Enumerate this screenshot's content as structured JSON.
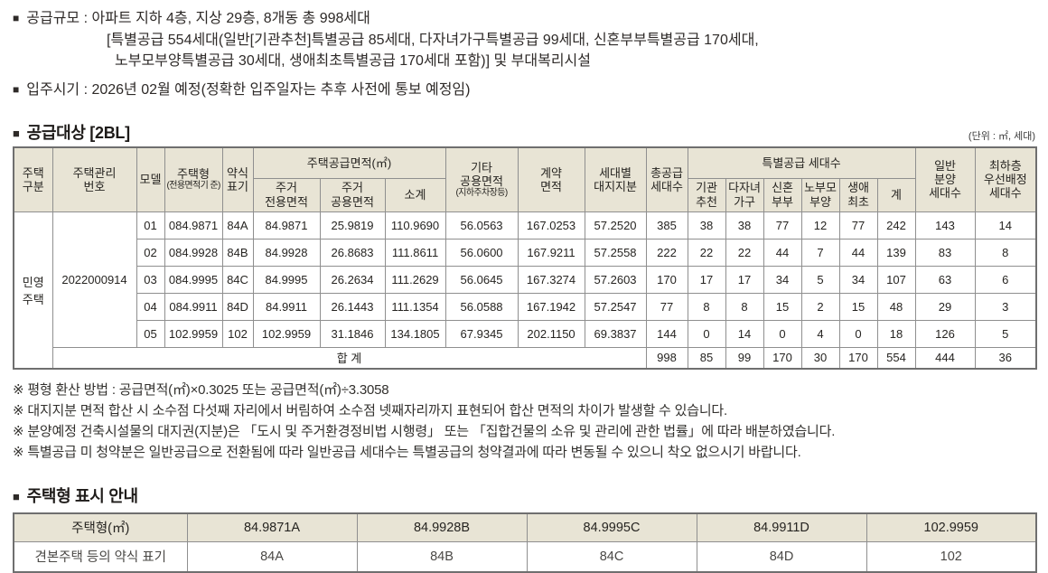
{
  "glyphs": {
    "bullet": "■"
  },
  "intro": {
    "supply_scale_line1": "공급규모 : 아파트 지하 4층, 지상 29층, 8개동 총 998세대",
    "supply_scale_line2": "[특별공급 554세대(일반[기관추천]특별공급 85세대, 다자녀가구특별공급 99세대, 신혼부부특별공급 170세대,",
    "supply_scale_line3": "노부모부양특별공급 30세대, 생애최초특별공급 170세대 포함)] 및 부대복리시설",
    "move_in": "입주시기 : 2026년 02월 예정(정확한 입주일자는 추후 사전에 통보 예정임)"
  },
  "supply_section": {
    "title": "공급대상 [2BL]",
    "unit_note": "(단위 : ㎡, 세대)",
    "headers": {
      "category": "주택\n구분",
      "mgmt_no": "주택관리\n번호",
      "model": "모델",
      "house_type_main": "주택형",
      "house_type_sub": "(전용면적기\n준)",
      "short_code": "약식\n표기",
      "supply_area_group": "주택공급면적(㎡)",
      "exclusive_area": "주거\n전용면적",
      "common_area": "주거\n공용면적",
      "subtotal": "소계",
      "other_common_main": "기타\n공용면적",
      "other_common_sub": "(지하주차장등)",
      "contract_area": "계약\n면적",
      "land_share": "세대별\n대지지분",
      "total_supply": "총공급\n세대수",
      "special_group": "특별공급 세대수",
      "agency": "기관\n추천",
      "multi_child": "다자녀\n가구",
      "newlywed": "신혼\n부부",
      "elderly_support": "노부모\n부양",
      "first_time": "생애\n최초",
      "special_sum": "계",
      "general_sale": "일반\n분양\n세대수",
      "ground_floor": "최하층\n우선배정\n세대수"
    },
    "group": {
      "category": "민영\n주택",
      "mgmt_no": "2022000914"
    },
    "rows": [
      [
        "01",
        "084.9871",
        "84A",
        "84.9871",
        "25.9819",
        "110.9690",
        "56.0563",
        "167.0253",
        "57.2520",
        "385",
        "38",
        "38",
        "77",
        "12",
        "77",
        "242",
        "143",
        "14"
      ],
      [
        "02",
        "084.9928",
        "84B",
        "84.9928",
        "26.8683",
        "111.8611",
        "56.0600",
        "167.9211",
        "57.2558",
        "222",
        "22",
        "22",
        "44",
        "7",
        "44",
        "139",
        "83",
        "8"
      ],
      [
        "03",
        "084.9995",
        "84C",
        "84.9995",
        "26.2634",
        "111.2629",
        "56.0645",
        "167.3274",
        "57.2603",
        "170",
        "17",
        "17",
        "34",
        "5",
        "34",
        "107",
        "63",
        "6"
      ],
      [
        "04",
        "084.9911",
        "84D",
        "84.9911",
        "26.1443",
        "111.1354",
        "56.0588",
        "167.1942",
        "57.2547",
        "77",
        "8",
        "8",
        "15",
        "2",
        "15",
        "48",
        "29",
        "3"
      ],
      [
        "05",
        "102.9959",
        "102",
        "102.9959",
        "31.1846",
        "134.1805",
        "67.9345",
        "202.1150",
        "69.3837",
        "144",
        "0",
        "14",
        "0",
        "4",
        "0",
        "18",
        "126",
        "5"
      ]
    ],
    "total_row": {
      "label": "합 계",
      "values": [
        "998",
        "85",
        "99",
        "170",
        "30",
        "170",
        "554",
        "444",
        "36"
      ]
    }
  },
  "notes": [
    "※ 평형 환산 방법 : 공급면적(㎡)×0.3025 또는 공급면적(㎡)÷3.3058",
    "※ 대지지분 면적 합산 시 소수점 다섯째 자리에서 버림하여 소수점 넷째자리까지 표현되어 합산 면적의 차이가 발생할 수 있습니다.",
    "※ 분양예정 건축시설물의 대지권(지분)은 「도시 및 주거환경정비법 시행령」 또는 「집합건물의 소유 및 관리에 관한 법률」에 따라 배분하였습니다.",
    "※ 특별공급 미 청약분은 일반공급으로 전환됨에 따라 일반공급 세대수는 특별공급의 청약결과에 따라 변동될 수 있으니 착오 없으시기 바랍니다."
  ],
  "type_section": {
    "title": "주택형 표시 안내",
    "header_label": "주택형(㎡)",
    "header_values": [
      "84.9871A",
      "84.9928B",
      "84.9995C",
      "84.9911D",
      "102.9959"
    ],
    "row_label": "견본주택 등의 약식 표기",
    "row_values": [
      "84A",
      "84B",
      "84C",
      "84D",
      "102"
    ]
  }
}
